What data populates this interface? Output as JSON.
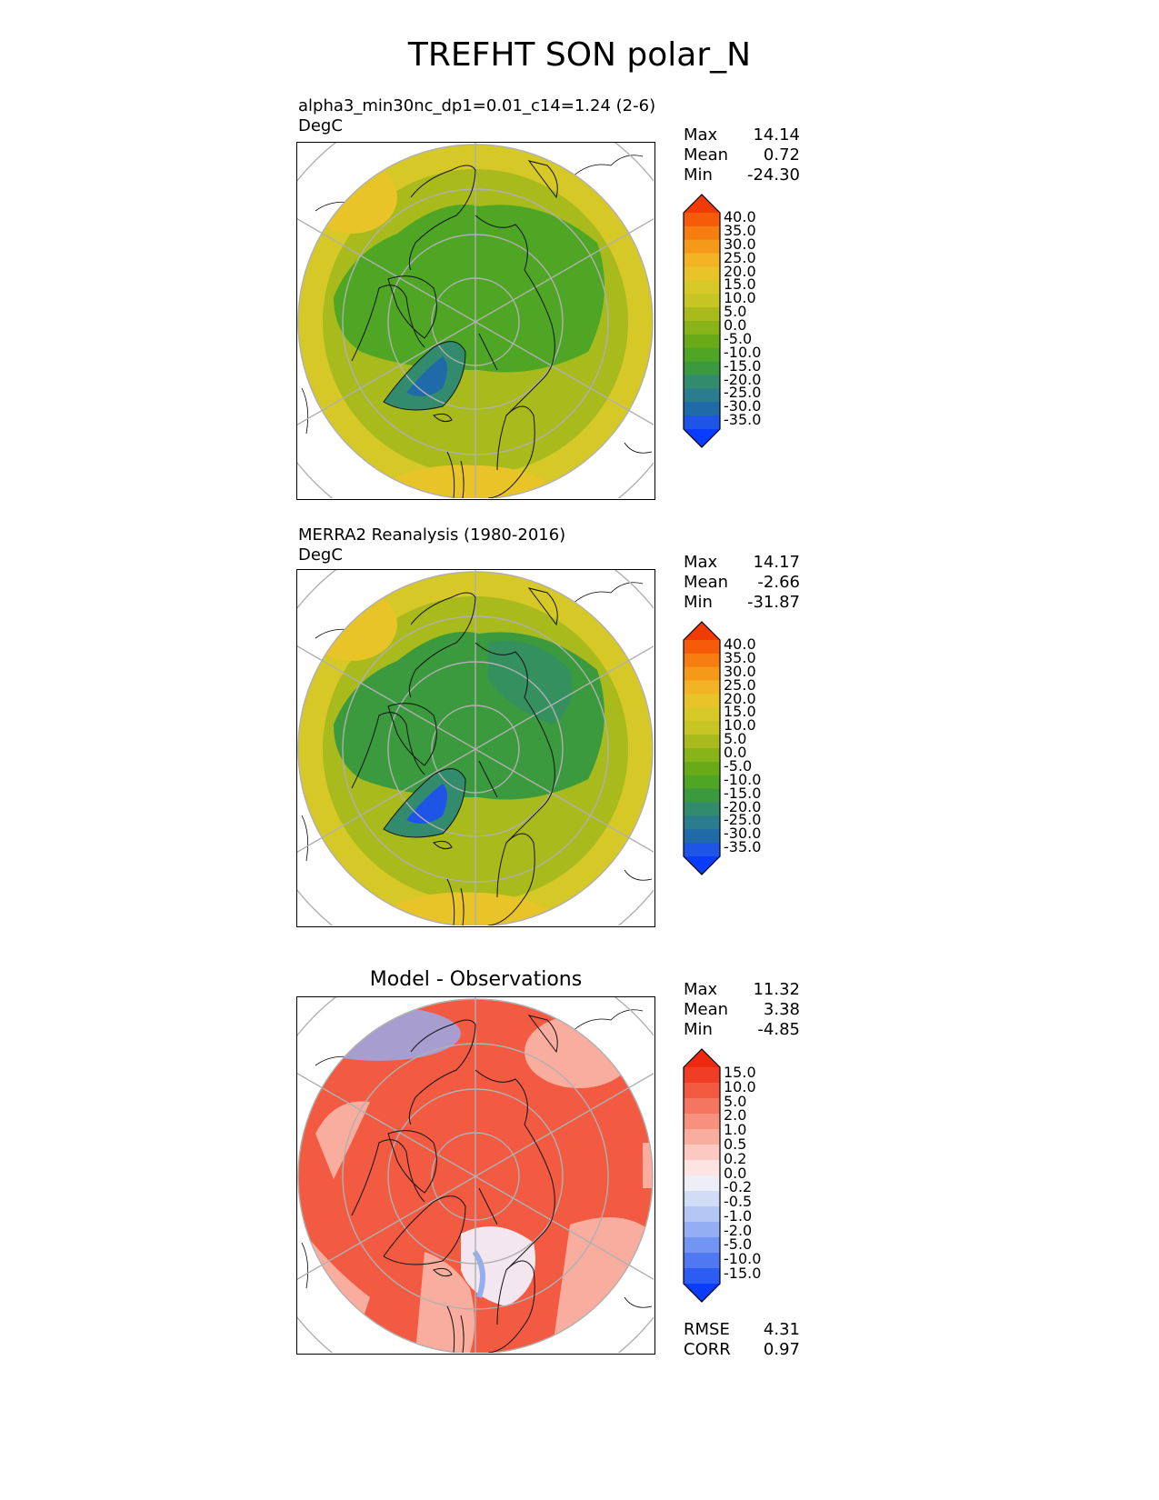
{
  "title": "TREFHT SON polar_N",
  "panels": [
    {
      "title": "alpha3_min30nc_dp1=0.01_c14=1.24 (2-6)",
      "units": "DegC",
      "stats": [
        {
          "label": "Max",
          "value": "14.14"
        },
        {
          "label": "Mean",
          "value": "0.72"
        },
        {
          "label": "Min",
          "value": "-24.30"
        }
      ],
      "colorbar": {
        "labels": [
          "40.0",
          "35.0",
          "30.0",
          "25.0",
          "20.0",
          "15.0",
          "10.0",
          "5.0",
          "0.0",
          "-5.0",
          "-10.0",
          "-15.0",
          "-20.0",
          "-25.0",
          "-30.0",
          "-35.0"
        ],
        "colors": [
          "#0a3cff",
          "#1e55e6",
          "#1f6aa8",
          "#2a7d8c",
          "#338b6e",
          "#3a9a3d",
          "#4ea624",
          "#69ab17",
          "#89b419",
          "#a8ba1c",
          "#c6c524",
          "#d6c826",
          "#e8c428",
          "#f2b424",
          "#f59a18",
          "#f67e10",
          "#f55b08",
          "#f23b04"
        ]
      }
    },
    {
      "title": "MERRA2 Reanalysis (1980-2016)",
      "units": "DegC",
      "stats": [
        {
          "label": "Max",
          "value": "14.17"
        },
        {
          "label": "Mean",
          "value": "-2.66"
        },
        {
          "label": "Min",
          "value": "-31.87"
        }
      ],
      "colorbar": {
        "labels": [
          "40.0",
          "35.0",
          "30.0",
          "25.0",
          "20.0",
          "15.0",
          "10.0",
          "5.0",
          "0.0",
          "-5.0",
          "-10.0",
          "-15.0",
          "-20.0",
          "-25.0",
          "-30.0",
          "-35.0"
        ],
        "colors": [
          "#0a3cff",
          "#1e55e6",
          "#1f6aa8",
          "#2a7d8c",
          "#338b6e",
          "#3a9a3d",
          "#4ea624",
          "#69ab17",
          "#89b419",
          "#a8ba1c",
          "#c6c524",
          "#d6c826",
          "#e8c428",
          "#f2b424",
          "#f59a18",
          "#f67e10",
          "#f55b08",
          "#f23b04"
        ]
      }
    },
    {
      "title": "Model - Observations",
      "stats": [
        {
          "label": "Max",
          "value": "11.32"
        },
        {
          "label": "Mean",
          "value": "3.38"
        },
        {
          "label": "Min",
          "value": "-4.85"
        }
      ],
      "colorbar": {
        "labels": [
          "15.0",
          "10.0",
          "5.0",
          "2.0",
          "1.0",
          "0.5",
          "0.2",
          "0.0",
          "-0.2",
          "-0.5",
          "-1.0",
          "-2.0",
          "-5.0",
          "-10.0",
          "-15.0"
        ],
        "colors": [
          "#0a3cff",
          "#2d5cf5",
          "#4f78f2",
          "#7294f2",
          "#93aef2",
          "#b3c6f4",
          "#d1dcf7",
          "#eeeef8",
          "#fbe4e1",
          "#fbc9c1",
          "#f9ad9f",
          "#f6917f",
          "#f47560",
          "#f25a42",
          "#f03e26",
          "#ec2a10"
        ]
      },
      "extra": [
        {
          "label": "RMSE",
          "value": "4.31"
        },
        {
          "label": "CORR",
          "value": "0.97"
        }
      ]
    }
  ],
  "colors": {
    "model_land": "#a8ba1c",
    "model_outer": "#d6c826",
    "model_cold": "#4ea624",
    "model_greenland": "#1f6aa8",
    "obs_cold": "#3a9a3d",
    "obs_greenland": "#1e55e6",
    "diff_base": "#f25a42",
    "diff_light": "#f9ad9f",
    "diff_blue": "#93aef2"
  }
}
